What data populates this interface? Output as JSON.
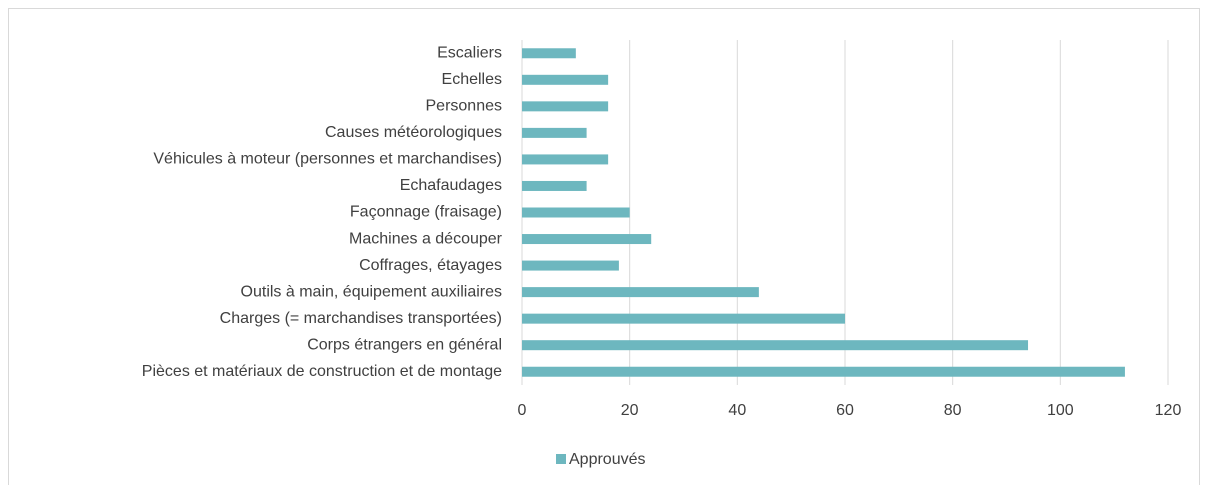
{
  "chart_data": {
    "type": "hbar",
    "categories": [
      "Escaliers",
      "Echelles",
      "Personnes",
      "Causes météorologiques",
      "Véhicules à moteur (personnes et marchandises)",
      "Echafaudages",
      "Façonnage (fraisage)",
      "Machines a découper",
      "Coffrages, étayages",
      "Outils à main, équipement auxiliaires",
      "Charges (= marchandises transportées)",
      "Corps étrangers en général",
      "Pièces et matériaux de construction et de montage"
    ],
    "series": [
      {
        "name": "Approuvés",
        "color": "#6db7bf",
        "values": [
          10,
          16,
          16,
          12,
          16,
          12,
          20,
          24,
          18,
          44,
          60,
          94,
          112
        ]
      }
    ],
    "xlim": [
      0,
      120
    ],
    "xticks": [
      0,
      20,
      40,
      60,
      80,
      100,
      120
    ],
    "grid": true,
    "legend": "bottom"
  }
}
